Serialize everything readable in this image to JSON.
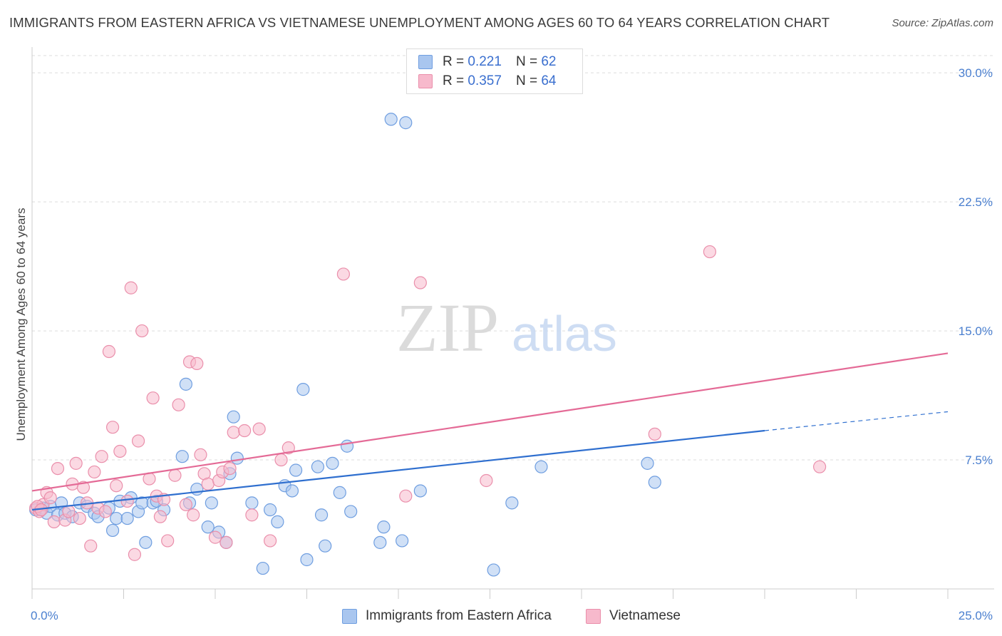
{
  "title": "IMMIGRANTS FROM EASTERN AFRICA VS VIETNAMESE UNEMPLOYMENT AMONG AGES 60 TO 64 YEARS CORRELATION CHART",
  "source": "Source: ZipAtlas.com",
  "watermark": {
    "zip": "ZIP",
    "atlas": "atlas"
  },
  "colors": {
    "blue_fill": "#a9c6ef",
    "blue_stroke": "#6f9ee0",
    "blue_line": "#2f6fcf",
    "pink_fill": "#f7b9cc",
    "pink_stroke": "#ea8fab",
    "pink_line": "#e46a96",
    "tick_text": "#4a7fcf",
    "grid": "#dddddd"
  },
  "legend_top": {
    "rows": [
      {
        "r_label": "R =",
        "r_value": "0.221",
        "n_label": "N =",
        "n_value": "62"
      },
      {
        "r_label": "R =",
        "r_value": "0.357",
        "n_label": "N =",
        "n_value": "64"
      }
    ]
  },
  "legend_bottom": {
    "items": [
      {
        "label": "Immigrants from Eastern Africa"
      },
      {
        "label": "Vietnamese"
      }
    ]
  },
  "chart_data": {
    "type": "scatter",
    "title": "IMMIGRANTS FROM EASTERN AFRICA VS VIETNAMESE UNEMPLOYMENT AMONG AGES 60 TO 64 YEARS CORRELATION CHART",
    "xlabel": "",
    "ylabel": "Unemployment Among Ages 60 to 64 years",
    "xlim": [
      0,
      25
    ],
    "ylim": [
      0,
      31
    ],
    "x_tick_labels": [
      "0.0%",
      "25.0%"
    ],
    "y_ticks": [
      7.5,
      15.0,
      22.5,
      30.0
    ],
    "y_tick_labels": [
      "7.5%",
      "15.0%",
      "22.5%",
      "30.0%"
    ],
    "grid": true,
    "legend_position": "top-center",
    "series": [
      {
        "name": "Immigrants from Eastern Africa",
        "r": 0.221,
        "n": 62,
        "trend": {
          "x0": 0,
          "y0": 4.6,
          "x1": 20,
          "y1": 9.2,
          "dashed_to_x": 25,
          "dashed_to_y": 10.3
        },
        "points": [
          [
            0.1,
            4.6
          ],
          [
            0.3,
            4.7
          ],
          [
            0.4,
            4.4
          ],
          [
            0.5,
            4.8
          ],
          [
            0.7,
            4.3
          ],
          [
            0.8,
            5.0
          ],
          [
            0.9,
            4.4
          ],
          [
            1.1,
            4.2
          ],
          [
            1.3,
            5.0
          ],
          [
            1.5,
            4.8
          ],
          [
            1.7,
            4.4
          ],
          [
            1.8,
            4.2
          ],
          [
            2.1,
            4.7
          ],
          [
            2.2,
            3.4
          ],
          [
            2.3,
            4.1
          ],
          [
            2.4,
            5.1
          ],
          [
            2.6,
            4.1
          ],
          [
            2.7,
            5.3
          ],
          [
            2.9,
            4.5
          ],
          [
            3.0,
            5.0
          ],
          [
            3.1,
            2.7
          ],
          [
            3.3,
            5.0
          ],
          [
            3.4,
            5.1
          ],
          [
            3.6,
            4.6
          ],
          [
            4.1,
            7.7
          ],
          [
            4.2,
            11.9
          ],
          [
            4.3,
            5.0
          ],
          [
            4.5,
            5.8
          ],
          [
            4.8,
            3.6
          ],
          [
            4.9,
            5.0
          ],
          [
            5.1,
            3.3
          ],
          [
            5.3,
            2.7
          ],
          [
            5.4,
            6.7
          ],
          [
            5.5,
            10.0
          ],
          [
            5.6,
            7.6
          ],
          [
            6.0,
            5.0
          ],
          [
            6.3,
            1.2
          ],
          [
            6.5,
            4.6
          ],
          [
            6.7,
            3.9
          ],
          [
            6.9,
            6.0
          ],
          [
            7.1,
            5.7
          ],
          [
            7.2,
            6.9
          ],
          [
            7.4,
            11.6
          ],
          [
            7.5,
            1.7
          ],
          [
            7.8,
            7.1
          ],
          [
            7.9,
            4.3
          ],
          [
            8.0,
            2.5
          ],
          [
            8.2,
            7.3
          ],
          [
            8.4,
            5.6
          ],
          [
            8.6,
            8.3
          ],
          [
            8.7,
            4.5
          ],
          [
            9.5,
            2.7
          ],
          [
            9.6,
            3.6
          ],
          [
            9.8,
            27.3
          ],
          [
            10.1,
            2.8
          ],
          [
            10.2,
            27.1
          ],
          [
            10.6,
            5.7
          ],
          [
            12.6,
            1.1
          ],
          [
            13.1,
            5.0
          ],
          [
            13.9,
            7.1
          ],
          [
            16.8,
            7.3
          ],
          [
            17.0,
            6.2
          ]
        ]
      },
      {
        "name": "Vietnamese",
        "r": 0.357,
        "n": 64,
        "trend": {
          "x0": 0,
          "y0": 5.7,
          "x1": 25,
          "y1": 13.7
        },
        "points": [
          [
            0.1,
            4.7
          ],
          [
            0.2,
            4.5
          ],
          [
            0.3,
            4.9
          ],
          [
            0.4,
            5.6
          ],
          [
            0.5,
            5.3
          ],
          [
            0.6,
            3.9
          ],
          [
            0.7,
            7.0
          ],
          [
            0.9,
            4.0
          ],
          [
            1.0,
            4.5
          ],
          [
            1.1,
            6.1
          ],
          [
            1.2,
            7.3
          ],
          [
            1.3,
            4.1
          ],
          [
            1.4,
            5.9
          ],
          [
            1.5,
            5.0
          ],
          [
            1.6,
            2.5
          ],
          [
            1.7,
            6.8
          ],
          [
            1.8,
            4.7
          ],
          [
            1.9,
            7.7
          ],
          [
            2.0,
            4.5
          ],
          [
            2.1,
            13.8
          ],
          [
            2.2,
            9.4
          ],
          [
            2.3,
            6.0
          ],
          [
            2.4,
            8.0
          ],
          [
            2.6,
            5.1
          ],
          [
            2.7,
            17.5
          ],
          [
            2.8,
            2.0
          ],
          [
            2.9,
            8.6
          ],
          [
            3.0,
            15.0
          ],
          [
            3.2,
            6.4
          ],
          [
            3.3,
            11.1
          ],
          [
            3.4,
            5.4
          ],
          [
            3.5,
            4.2
          ],
          [
            3.6,
            5.2
          ],
          [
            3.7,
            2.8
          ],
          [
            3.9,
            6.6
          ],
          [
            4.0,
            10.7
          ],
          [
            4.2,
            4.9
          ],
          [
            4.3,
            13.2
          ],
          [
            4.4,
            4.3
          ],
          [
            4.5,
            13.1
          ],
          [
            4.6,
            7.8
          ],
          [
            4.7,
            6.7
          ],
          [
            4.8,
            6.1
          ],
          [
            5.0,
            3.0
          ],
          [
            5.1,
            6.3
          ],
          [
            5.2,
            6.8
          ],
          [
            5.3,
            2.7
          ],
          [
            5.4,
            7.0
          ],
          [
            5.5,
            9.1
          ],
          [
            5.8,
            9.2
          ],
          [
            6.0,
            4.3
          ],
          [
            6.2,
            9.3
          ],
          [
            6.5,
            2.8
          ],
          [
            6.8,
            7.5
          ],
          [
            7.0,
            8.2
          ],
          [
            8.5,
            18.3
          ],
          [
            10.2,
            5.4
          ],
          [
            10.6,
            17.8
          ],
          [
            12.4,
            6.3
          ],
          [
            17.0,
            9.0
          ],
          [
            18.5,
            19.6
          ],
          [
            21.5,
            7.1
          ],
          [
            0.15,
            4.8
          ],
          [
            0.25,
            4.6
          ]
        ]
      }
    ]
  }
}
